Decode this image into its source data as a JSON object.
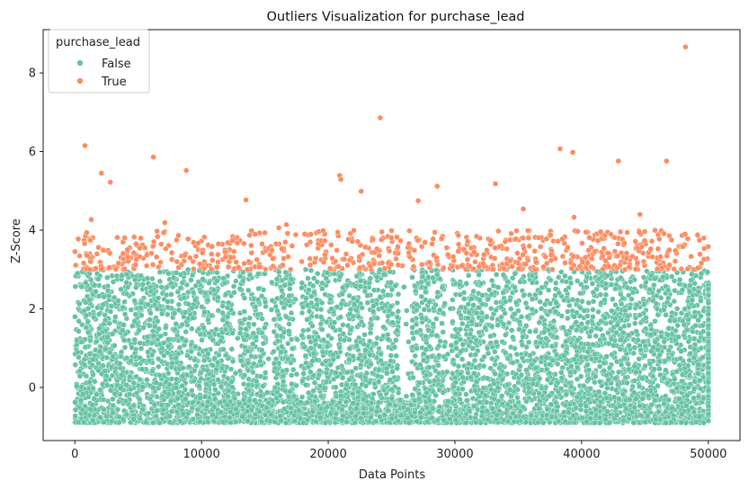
{
  "chart_data": {
    "type": "scatter",
    "title": "Outliers Visualization for purchase_lead",
    "xlabel": "Data Points",
    "ylabel": "Z-Score",
    "xlim": [
      -2500,
      52500
    ],
    "ylim": [
      -1.35,
      9.1
    ],
    "x_ticks": [
      0,
      10000,
      20000,
      30000,
      40000,
      50000
    ],
    "x_tick_labels": [
      "0",
      "10000",
      "20000",
      "30000",
      "40000",
      "50000"
    ],
    "y_ticks": [
      0,
      2,
      4,
      6,
      8
    ],
    "y_tick_labels": [
      "0",
      "2",
      "4",
      "6",
      "8"
    ],
    "grid": false,
    "legend": {
      "title": "purchase_lead",
      "placement": "top-left",
      "entries": [
        {
          "label": "False",
          "color": "#66c2a5"
        },
        {
          "label": "True",
          "color": "#fc8d62"
        }
      ]
    },
    "series": [
      {
        "name": "False",
        "color": "#66c2a5",
        "description": "Dense band of points for all 50000 data points with Z-Score between about -0.9 and 3.0",
        "range_x": [
          0,
          50000
        ],
        "range_y": [
          -0.9,
          3.0
        ]
      },
      {
        "name": "True",
        "color": "#fc8d62",
        "description": "Outliers with Z-Score above 3",
        "notable_points": [
          {
            "x": 800,
            "y": 6.15
          },
          {
            "x": 1300,
            "y": 4.27
          },
          {
            "x": 2100,
            "y": 5.45
          },
          {
            "x": 2800,
            "y": 5.22
          },
          {
            "x": 6200,
            "y": 5.86
          },
          {
            "x": 7100,
            "y": 4.19
          },
          {
            "x": 8800,
            "y": 5.52
          },
          {
            "x": 13500,
            "y": 4.77
          },
          {
            "x": 16100,
            "y": 4.06
          },
          {
            "x": 16700,
            "y": 4.14
          },
          {
            "x": 19600,
            "y": 3.99
          },
          {
            "x": 20900,
            "y": 5.39
          },
          {
            "x": 21000,
            "y": 5.29
          },
          {
            "x": 22600,
            "y": 4.99
          },
          {
            "x": 24100,
            "y": 6.86
          },
          {
            "x": 25000,
            "y": 3.99
          },
          {
            "x": 27100,
            "y": 4.75
          },
          {
            "x": 28600,
            "y": 5.12
          },
          {
            "x": 33200,
            "y": 5.18
          },
          {
            "x": 35400,
            "y": 4.54
          },
          {
            "x": 38300,
            "y": 6.07
          },
          {
            "x": 39300,
            "y": 5.98
          },
          {
            "x": 39400,
            "y": 4.33
          },
          {
            "x": 42900,
            "y": 5.76
          },
          {
            "x": 44600,
            "y": 4.4
          },
          {
            "x": 46700,
            "y": 5.76
          },
          {
            "x": 48200,
            "y": 8.66
          }
        ],
        "band_range_y": [
          3.0,
          4.0
        ]
      }
    ]
  }
}
